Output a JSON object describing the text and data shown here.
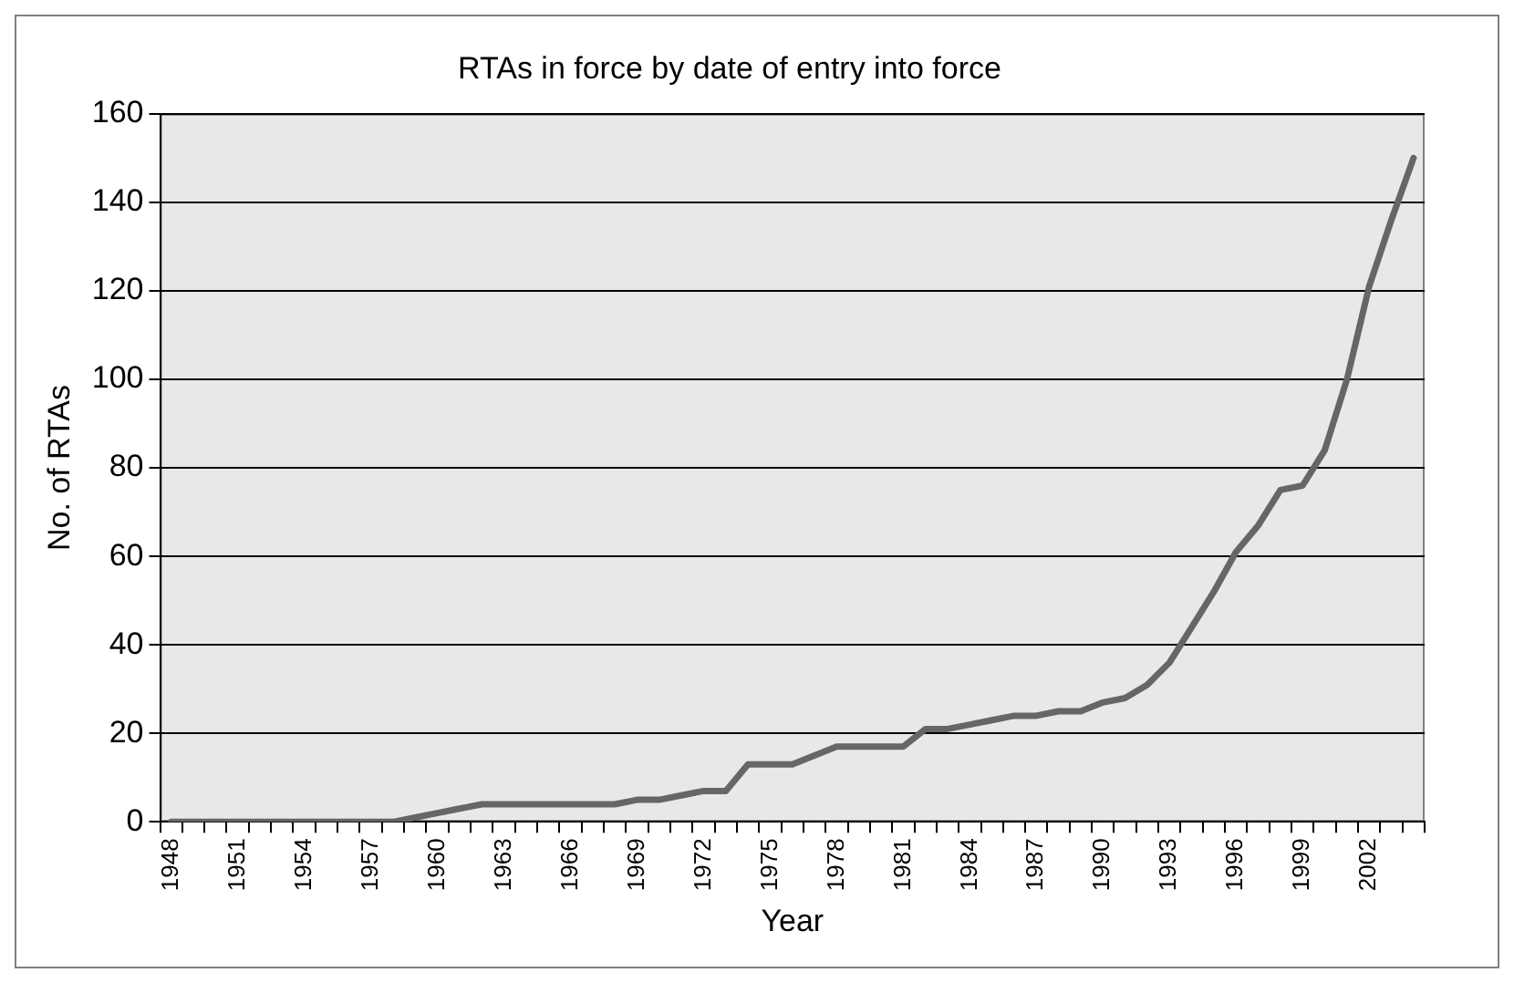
{
  "chart_data": {
    "type": "line",
    "title": "RTAs in force by date of entry into force",
    "xlabel": "Year",
    "ylabel": "No. of RTAs",
    "categories": [
      "1948",
      null,
      null,
      "1951",
      null,
      null,
      "1954",
      null,
      null,
      "1957",
      null,
      null,
      "1960",
      null,
      null,
      "1963",
      null,
      null,
      "1966",
      null,
      null,
      "1969",
      null,
      null,
      "1972",
      null,
      null,
      "1975",
      null,
      null,
      "1978",
      null,
      null,
      "1981",
      null,
      null,
      "1984",
      null,
      null,
      "1987",
      null,
      null,
      "1990",
      null,
      null,
      "1993",
      null,
      null,
      "1996",
      null,
      null,
      "1999",
      null,
      null,
      "2002",
      null,
      null
    ],
    "series": [
      {
        "color": "#666666",
        "values": [
          0,
          0,
          0,
          0,
          0,
          0,
          0,
          0,
          0,
          0,
          0,
          1,
          2,
          3,
          4,
          4,
          4,
          4,
          4,
          4,
          4,
          5,
          5,
          6,
          7,
          7,
          13,
          13,
          13,
          15,
          17,
          17,
          17,
          17,
          21,
          21,
          22,
          23,
          24,
          24,
          25,
          25,
          27,
          28,
          31,
          36,
          44,
          52,
          61,
          67,
          75,
          76,
          84,
          100,
          121,
          136,
          150
        ]
      }
    ],
    "ylim": [
      0,
      160
    ],
    "yticks": [
      0,
      20,
      40,
      60,
      80,
      100,
      120,
      140,
      160
    ],
    "grid": "y",
    "legend": false,
    "marker": "none",
    "line_style": "solid"
  }
}
